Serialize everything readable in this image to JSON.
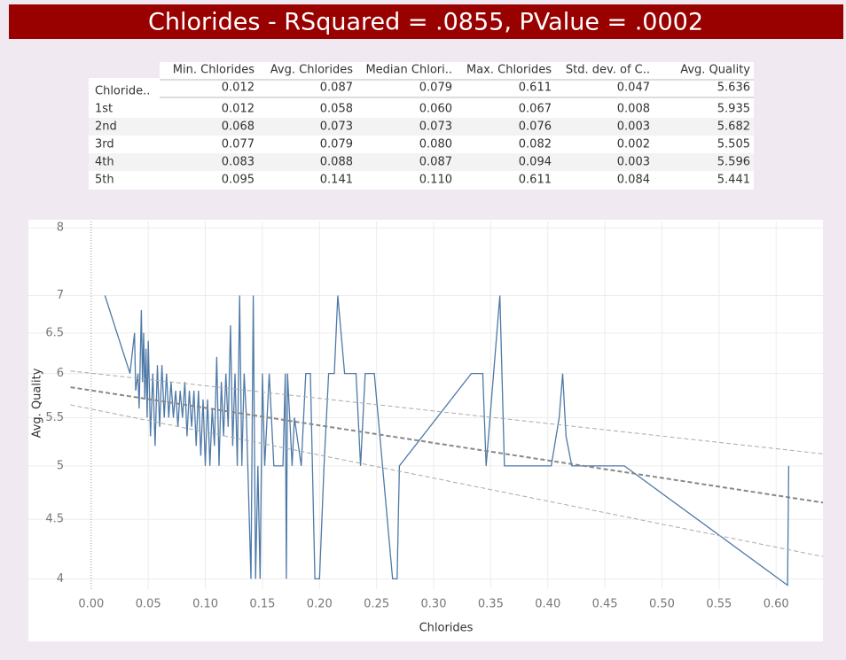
{
  "chart_data": {
    "type": "line",
    "title": "Chlorides - RSquared = .0855, PValue =  .0002",
    "x_label": "Chlorides",
    "y_label": "Avg. Quality",
    "color": "#4e79a7",
    "y_scale": "log",
    "grid": true,
    "xlim": [
      -0.055,
      0.641
    ],
    "ylim": [
      3.92,
      8.1
    ],
    "xticks": [
      {
        "value": 0,
        "label": "0.00"
      },
      {
        "value": 0.05,
        "label": "0.05"
      },
      {
        "value": 0.1,
        "label": "0.10"
      },
      {
        "value": 0.15,
        "label": "0.15"
      },
      {
        "value": 0.2,
        "label": "0.20"
      },
      {
        "value": 0.25,
        "label": "0.25"
      },
      {
        "value": 0.3,
        "label": "0.30"
      },
      {
        "value": 0.35,
        "label": "0.35"
      },
      {
        "value": 0.4,
        "label": "0.40"
      },
      {
        "value": 0.45,
        "label": "0.45"
      },
      {
        "value": 0.5,
        "label": "0.50"
      },
      {
        "value": 0.55,
        "label": "0.55"
      },
      {
        "value": 0.6,
        "label": "0.60"
      }
    ],
    "yticks": [
      4,
      4.5,
      5,
      5.5,
      6,
      6.5,
      7,
      8
    ],
    "x": [
      0.012,
      0.034,
      0.038,
      0.039,
      0.041,
      0.042,
      0.044,
      0.045,
      0.046,
      0.047,
      0.048,
      0.049,
      0.05,
      0.052,
      0.054,
      0.056,
      0.058,
      0.06,
      0.062,
      0.064,
      0.066,
      0.068,
      0.07,
      0.072,
      0.074,
      0.076,
      0.078,
      0.08,
      0.082,
      0.084,
      0.086,
      0.088,
      0.09,
      0.092,
      0.094,
      0.096,
      0.098,
      0.1,
      0.102,
      0.104,
      0.106,
      0.108,
      0.11,
      0.112,
      0.114,
      0.116,
      0.118,
      0.12,
      0.122,
      0.124,
      0.126,
      0.128,
      0.13,
      0.132,
      0.134,
      0.136,
      0.14,
      0.142,
      0.144,
      0.146,
      0.148,
      0.15,
      0.152,
      0.156,
      0.16,
      0.168,
      0.17,
      0.171,
      0.172,
      0.176,
      0.178,
      0.184,
      0.188,
      0.192,
      0.196,
      0.2,
      0.204,
      0.208,
      0.213,
      0.216,
      0.222,
      0.232,
      0.236,
      0.24,
      0.248,
      0.264,
      0.268,
      0.27,
      0.333,
      0.343,
      0.346,
      0.358,
      0.362,
      0.403,
      0.41,
      0.413,
      0.416,
      0.421,
      0.467,
      0.61,
      0.611
    ],
    "values": [
      7,
      6,
      6.5,
      5.8,
      6,
      5.6,
      6.8,
      5.9,
      6.5,
      5.7,
      6.3,
      5.5,
      6.4,
      5.3,
      6,
      5.2,
      6.1,
      5.4,
      6.1,
      5.5,
      6,
      5.5,
      5.9,
      5.5,
      5.8,
      5.4,
      5.8,
      5.5,
      5.9,
      5.3,
      5.8,
      5.4,
      5.8,
      5.2,
      5.8,
      5.1,
      5.7,
      5,
      5.7,
      5,
      5.6,
      5.2,
      6.2,
      5,
      5.9,
      5.3,
      6,
      5.4,
      6.6,
      5.2,
      6,
      5,
      7,
      5,
      6,
      5.5,
      4,
      7,
      4,
      5,
      4,
      6,
      5,
      6,
      5,
      5,
      6,
      4,
      6,
      5,
      5.5,
      5,
      6,
      6,
      4,
      4,
      5,
      6,
      6,
      7,
      6,
      6,
      5,
      6,
      6,
      4,
      4,
      5,
      6,
      6,
      5,
      7,
      5,
      5,
      5.5,
      6,
      5.3,
      5,
      5,
      3.95,
      5
    ],
    "trend_lines": [
      {
        "x": [
          -0.018,
          0.641
        ],
        "y": [
          5.84,
          4.65
        ],
        "color": "#888888",
        "width": 2
      },
      {
        "x": [
          -0.018,
          0.641
        ],
        "y": [
          6.03,
          5.12
        ],
        "color": "#aaaaaa",
        "width": 1
      },
      {
        "x": [
          -0.018,
          0.641
        ],
        "y": [
          5.64,
          4.18
        ],
        "color": "#aaaaaa",
        "width": 1
      }
    ]
  },
  "table": {
    "columns": [
      "Min. Chlorides",
      "Avg. Chlorides",
      "Median Chlori..",
      "Max. Chlorides",
      "Std. dev. of C..",
      "Avg. Quality"
    ],
    "row_header": "Chloride..",
    "total": [
      "0.012",
      "0.087",
      "0.079",
      "0.611",
      "0.047",
      "5.636"
    ],
    "rows": [
      [
        "1st",
        "0.012",
        "0.058",
        "0.060",
        "0.067",
        "0.008",
        "5.935"
      ],
      [
        "2nd",
        "0.068",
        "0.073",
        "0.073",
        "0.076",
        "0.003",
        "5.682"
      ],
      [
        "3rd",
        "0.077",
        "0.079",
        "0.080",
        "0.082",
        "0.002",
        "5.505"
      ],
      [
        "4th",
        "0.083",
        "0.088",
        "0.087",
        "0.094",
        "0.003",
        "5.596"
      ],
      [
        "5th",
        "0.095",
        "0.141",
        "0.110",
        "0.611",
        "0.084",
        "5.441"
      ]
    ]
  }
}
